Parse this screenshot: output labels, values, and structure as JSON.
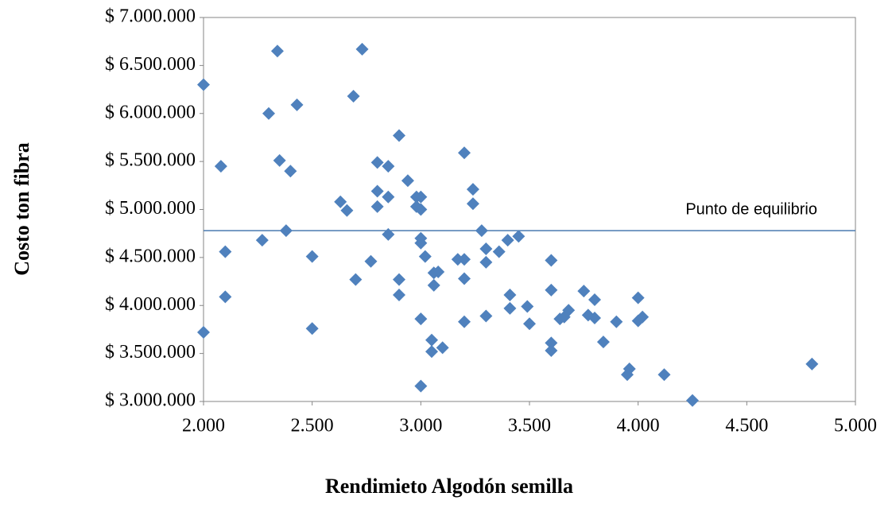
{
  "chart_data": {
    "type": "scatter",
    "x_label": "Rendimieto Algodón semilla",
    "y_label": "Costo ton fibra",
    "color": "#4f81bd",
    "grid": false,
    "xlim": [
      2000,
      5000
    ],
    "ylim": [
      3000000,
      7000000
    ],
    "xticks": [
      {
        "value": 2000,
        "label": "2.000"
      },
      {
        "value": 2500,
        "label": "2.500"
      },
      {
        "value": 3000,
        "label": "3.000"
      },
      {
        "value": 3500,
        "label": "3.500"
      },
      {
        "value": 4000,
        "label": "4.000"
      },
      {
        "value": 4500,
        "label": "4.500"
      },
      {
        "value": 5000,
        "label": "5.000"
      }
    ],
    "yticks": [
      {
        "value": 3000000,
        "label": "$ 3.000.000"
      },
      {
        "value": 3500000,
        "label": "$ 3.500.000"
      },
      {
        "value": 4000000,
        "label": "$ 4.000.000"
      },
      {
        "value": 4500000,
        "label": "$ 4.500.000"
      },
      {
        "value": 5000000,
        "label": "$ 5.000.000"
      },
      {
        "value": 5500000,
        "label": "$ 5.500.000"
      },
      {
        "value": 6000000,
        "label": "$ 6.000.000"
      },
      {
        "value": 6500000,
        "label": "$ 6.500.000"
      },
      {
        "value": 7000000,
        "label": "$ 7.000.000"
      }
    ],
    "reference_line": {
      "label": "Punto de equilibrio",
      "value": 4780000,
      "color": "#4a7ab0"
    },
    "x": [
      2000,
      2000,
      2080,
      2100,
      2100,
      2270,
      2300,
      2340,
      2350,
      2380,
      2400,
      2430,
      2500,
      2500,
      2630,
      2660,
      2690,
      2700,
      2730,
      2770,
      2800,
      2800,
      2800,
      2850,
      2850,
      2850,
      2900,
      2900,
      2900,
      2940,
      2980,
      2980,
      3000,
      3000,
      3000,
      3000,
      3000,
      3000,
      3020,
      3050,
      3050,
      3060,
      3060,
      3080,
      3100,
      3170,
      3200,
      3200,
      3200,
      3200,
      3240,
      3240,
      3280,
      3300,
      3300,
      3300,
      3360,
      3400,
      3410,
      3410,
      3450,
      3490,
      3500,
      3600,
      3600,
      3600,
      3600,
      3640,
      3660,
      3680,
      3750,
      3770,
      3800,
      3800,
      3840,
      3900,
      3960,
      3950,
      4000,
      4000,
      4020,
      4120,
      4250,
      4800
    ],
    "values": [
      6300000,
      3720000,
      5450000,
      4560000,
      4090000,
      4680000,
      6000000,
      6650000,
      5510000,
      4780000,
      5400000,
      6090000,
      4510000,
      3760000,
      5080000,
      4990000,
      6180000,
      4270000,
      6670000,
      4460000,
      5490000,
      5190000,
      5030000,
      5450000,
      4740000,
      5130000,
      5770000,
      4270000,
      4110000,
      5300000,
      5130000,
      5030000,
      5130000,
      5000000,
      4700000,
      4650000,
      3860000,
      3160000,
      4510000,
      3640000,
      3520000,
      4340000,
      4210000,
      4350000,
      3560000,
      4480000,
      5590000,
      4480000,
      4280000,
      3830000,
      5210000,
      5060000,
      4780000,
      4590000,
      4450000,
      3890000,
      4560000,
      4680000,
      4110000,
      3970000,
      4720000,
      3990000,
      3810000,
      4470000,
      4160000,
      3610000,
      3530000,
      3860000,
      3880000,
      3950000,
      4150000,
      3900000,
      4060000,
      3870000,
      3620000,
      3830000,
      3340000,
      3280000,
      4080000,
      3840000,
      3880000,
      3280000,
      3010000,
      3390000
    ]
  }
}
